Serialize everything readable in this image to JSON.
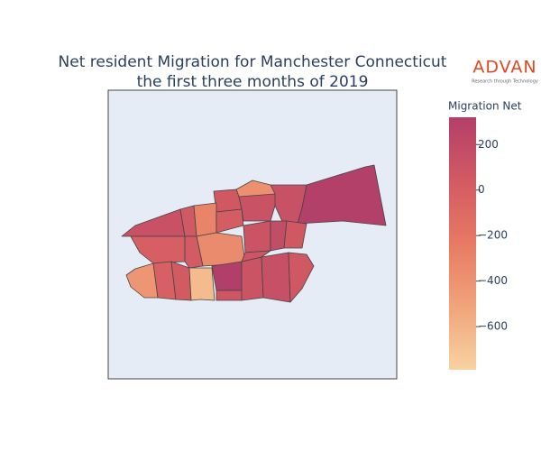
{
  "chart_data": {
    "type": "choropleth",
    "title": [
      "Net resident Migration for Manchester Connecticut",
      "the first three months of 2019"
    ],
    "logo": "ADVAN",
    "logo_tagline": "Research through Technology",
    "colorbar_title": "Migration Net",
    "zlim": [
      -790,
      320
    ],
    "zticks": [
      200,
      0,
      {
        "value": -200,
        "label": "−200"
      },
      {
        "value": -400,
        "label": "−400"
      },
      {
        "value": -600,
        "label": "−600"
      }
    ],
    "colorscale": [
      "#f7d3a1",
      "#f1a47a",
      "#e77a64",
      "#d25a63",
      "#b23f69"
    ],
    "values": [
      310,
      140,
      -380,
      60,
      120,
      130,
      50,
      -300,
      20,
      -350,
      0,
      30,
      110,
      180,
      60,
      -420,
      -10,
      40,
      -650,
      330,
      90,
      100,
      150,
      60,
      80
    ]
  }
}
